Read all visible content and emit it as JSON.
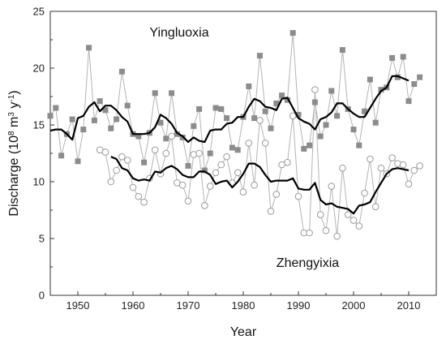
{
  "chart_data": {
    "type": "line",
    "title": "",
    "xlabel": "Year",
    "ylabel_parts": {
      "prefix": "Discharge (10",
      "sup1": "8",
      "mid": " m",
      "sup2": "3",
      "mid2": " y",
      "sup3": "-1",
      "suffix": ")"
    },
    "xlim": [
      1945,
      2015
    ],
    "ylim": [
      0,
      25
    ],
    "xticks": [
      1950,
      1960,
      1970,
      1980,
      1990,
      2000,
      2010
    ],
    "yticks": [
      0,
      5,
      10,
      15,
      20,
      25
    ],
    "grid": false,
    "annotations": [
      {
        "text": "Yingluoxia",
        "x": 1963,
        "y": 22.8
      },
      {
        "text": "Zhengyixia",
        "x": 1986,
        "y": 2.5
      }
    ],
    "series": [
      {
        "name": "Yingluoxia",
        "style": "square-markers",
        "color": "#8c8c8c",
        "x": [
          1945,
          1946,
          1947,
          1948,
          1949,
          1950,
          1951,
          1952,
          1953,
          1954,
          1955,
          1956,
          1957,
          1958,
          1959,
          1960,
          1961,
          1962,
          1963,
          1964,
          1965,
          1966,
          1967,
          1968,
          1969,
          1970,
          1971,
          1972,
          1973,
          1974,
          1975,
          1976,
          1977,
          1978,
          1979,
          1980,
          1981,
          1982,
          1983,
          1984,
          1985,
          1986,
          1987,
          1988,
          1989,
          1990,
          1991,
          1992,
          1993,
          1994,
          1995,
          1996,
          1997,
          1998,
          1999,
          2000,
          2001,
          2002,
          2003,
          2004,
          2005,
          2006,
          2007,
          2008,
          2009,
          2010,
          2011,
          2012
        ],
        "values": [
          15.8,
          16.5,
          12.3,
          14.2,
          15.5,
          11.8,
          14.6,
          21.8,
          15.4,
          17.1,
          16.3,
          14.7,
          15.5,
          19.7,
          16.7,
          14.2,
          14.0,
          11.7,
          14.3,
          17.8,
          15.2,
          13.8,
          17.8,
          14.2,
          13.9,
          11.4,
          14.9,
          16.4,
          11.0,
          12.5,
          16.5,
          16.4,
          15.6,
          13.0,
          12.8,
          15.7,
          18.4,
          15.6,
          21.1,
          16.2,
          14.7,
          16.9,
          17.6,
          17.2,
          23.1,
          15.9,
          12.9,
          13.2,
          17.0,
          14.0,
          15.0,
          18.0,
          15.8,
          21.6,
          16.4,
          14.6,
          13.2,
          16.2,
          19.0,
          15.2,
          18.1,
          18.3,
          20.9,
          19.2,
          21.0,
          17.1,
          18.6,
          19.2
        ]
      },
      {
        "name": "Yingluoxia moving average",
        "style": "thick-line",
        "color": "#000000",
        "x": [
          1945,
          1946,
          1947,
          1948,
          1949,
          1950,
          1951,
          1952,
          1953,
          1954,
          1955,
          1956,
          1957,
          1958,
          1959,
          1960,
          1961,
          1962,
          1963,
          1964,
          1965,
          1966,
          1967,
          1968,
          1969,
          1970,
          1971,
          1972,
          1973,
          1974,
          1975,
          1976,
          1977,
          1978,
          1979,
          1980,
          1981,
          1982,
          1983,
          1984,
          1985,
          1986,
          1987,
          1988,
          1989,
          1990,
          1991,
          1992,
          1993,
          1994,
          1995,
          1996,
          1997,
          1998,
          1999,
          2000,
          2001,
          2002,
          2003,
          2004,
          2005,
          2006,
          2007,
          2008,
          2009,
          2010
        ],
        "values": [
          14.5,
          14.6,
          14.6,
          14.2,
          13.7,
          15.6,
          15.8,
          16.6,
          17.0,
          16.2,
          16.7,
          16.7,
          16.3,
          15.7,
          15.3,
          14.2,
          14.2,
          14.2,
          14.3,
          14.8,
          15.9,
          15.6,
          15.1,
          14.3,
          14.0,
          13.5,
          13.9,
          13.6,
          13.5,
          14.5,
          14.6,
          14.6,
          15.1,
          15.2,
          15.7,
          15.7,
          16.6,
          17.3,
          17.1,
          16.6,
          16.5,
          16.3,
          17.3,
          17.4,
          16.5,
          15.6,
          15.3,
          15.1,
          14.6,
          15.5,
          15.7,
          16.1,
          16.9,
          16.9,
          16.4,
          16.0,
          15.7,
          15.7,
          16.5,
          17.3,
          18.0,
          18.3,
          19.3,
          19.3,
          19.1,
          18.9
        ]
      },
      {
        "name": "Zhengyixia",
        "style": "circle-markers",
        "color": "#9a9a9a",
        "x": [
          1954,
          1955,
          1956,
          1957,
          1958,
          1959,
          1960,
          1961,
          1962,
          1963,
          1964,
          1965,
          1966,
          1967,
          1968,
          1969,
          1970,
          1971,
          1972,
          1973,
          1974,
          1975,
          1976,
          1977,
          1978,
          1979,
          1980,
          1981,
          1982,
          1983,
          1984,
          1985,
          1986,
          1987,
          1988,
          1989,
          1990,
          1991,
          1992,
          1993,
          1994,
          1995,
          1996,
          1997,
          1998,
          1999,
          2000,
          2001,
          2002,
          2003,
          2004,
          2005,
          2006,
          2007,
          2008,
          2009,
          2010,
          2011,
          2012
        ],
        "values": [
          12.8,
          12.6,
          10.0,
          11.0,
          12.2,
          11.9,
          9.5,
          8.7,
          8.2,
          10.3,
          12.8,
          10.7,
          12.5,
          14.0,
          9.9,
          9.7,
          8.3,
          12.4,
          12.5,
          7.9,
          9.6,
          10.8,
          11.5,
          12.2,
          9.9,
          10.8,
          9.1,
          13.4,
          9.7,
          15.4,
          13.4,
          7.4,
          8.9,
          11.5,
          11.7,
          15.8,
          8.7,
          5.5,
          5.5,
          18.1,
          7.1,
          5.7,
          9.6,
          5.2,
          11.2,
          7.1,
          6.6,
          6.1,
          9.0,
          12.0,
          7.8,
          11.2,
          10.7,
          12.1,
          11.6,
          11.5,
          9.8,
          11.0,
          11.4
        ]
      },
      {
        "name": "Zhengyixia moving average",
        "style": "thick-line",
        "color": "#000000",
        "x": [
          1956,
          1957,
          1958,
          1959,
          1960,
          1961,
          1962,
          1963,
          1964,
          1965,
          1966,
          1967,
          1968,
          1969,
          1970,
          1971,
          1972,
          1973,
          1974,
          1975,
          1976,
          1977,
          1978,
          1979,
          1980,
          1981,
          1982,
          1983,
          1984,
          1985,
          1986,
          1987,
          1988,
          1989,
          1990,
          1991,
          1992,
          1993,
          1994,
          1995,
          1996,
          1997,
          1998,
          1999,
          2000,
          2001,
          2002,
          2003,
          2004,
          2005,
          2006,
          2007,
          2008,
          2009,
          2010
        ],
        "values": [
          12.2,
          12.0,
          11.2,
          11.0,
          10.3,
          10.1,
          10.2,
          10.1,
          10.9,
          10.8,
          11.2,
          11.4,
          11.1,
          10.6,
          10.4,
          10.4,
          10.9,
          10.9,
          10.6,
          9.8,
          10.0,
          10.1,
          9.5,
          10.0,
          10.7,
          11.6,
          11.6,
          11.3,
          10.6,
          10.0,
          10.1,
          10.1,
          10.1,
          10.3,
          9.4,
          9.3,
          9.3,
          9.9,
          8.4,
          8.0,
          8.1,
          7.8,
          7.7,
          7.6,
          7.2,
          7.9,
          8.0,
          8.2,
          9.1,
          9.9,
          10.7,
          11.1,
          11.2,
          11.1,
          11.0
        ]
      }
    ]
  }
}
